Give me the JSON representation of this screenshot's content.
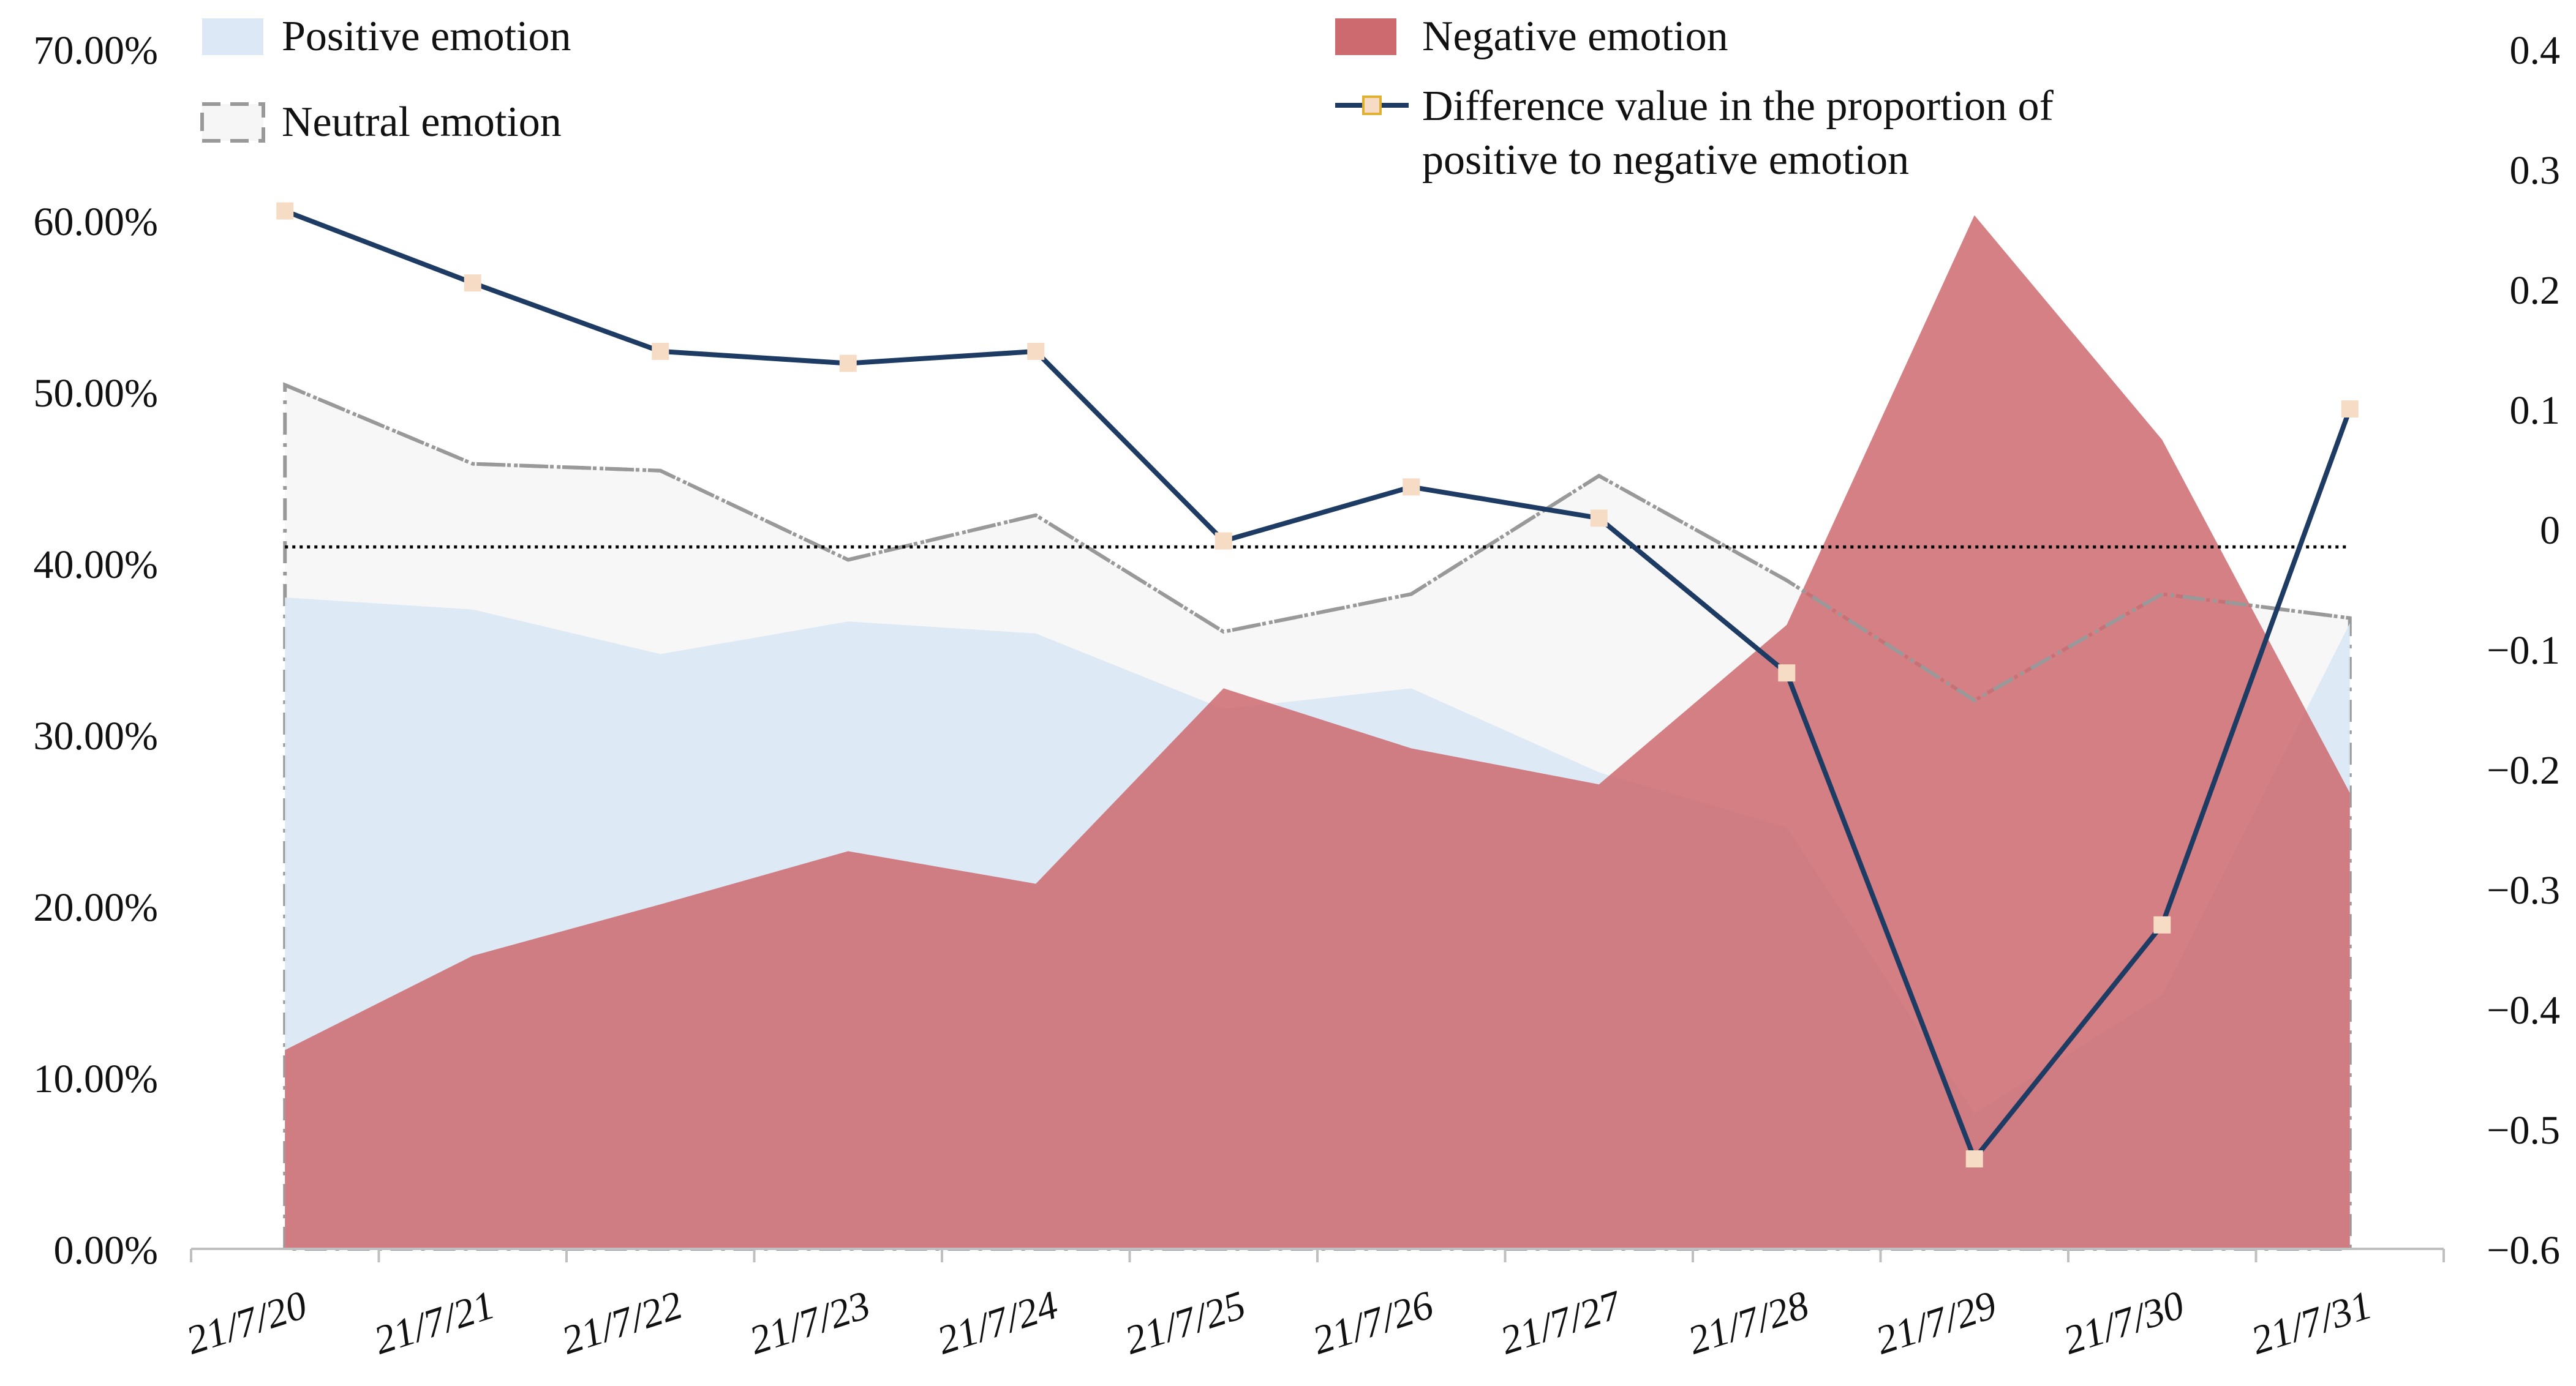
{
  "chart_data": {
    "type": "area",
    "categories": [
      "21/7/20",
      "21/7/21",
      "21/7/22",
      "21/7/23",
      "21/7/24",
      "21/7/25",
      "21/7/26",
      "21/7/27",
      "21/7/28",
      "21/7/29",
      "21/7/30",
      "21/7/31"
    ],
    "left_axis": {
      "ticks": [
        "0.00%",
        "10.00%",
        "20.00%",
        "30.00%",
        "40.00%",
        "50.00%",
        "60.00%",
        "70.00%"
      ],
      "ylim": [
        0,
        70
      ]
    },
    "right_axis": {
      "ticks": [
        "0.4",
        "0.3",
        "0.2",
        "0.1",
        "0",
        "−0.1",
        "−0.2",
        "−0.3",
        "−0.4",
        "−0.5",
        "−0.6"
      ],
      "ylim": [
        -0.6,
        0.4
      ]
    },
    "series": [
      {
        "name": "Positive emotion",
        "axis": "left",
        "kind": "area",
        "values": [
          38.0,
          37.3,
          34.7,
          36.6,
          35.9,
          31.5,
          32.7,
          27.8,
          24.6,
          7.9,
          14.8,
          36.5
        ]
      },
      {
        "name": "Negative emotion",
        "axis": "left",
        "kind": "area",
        "values": [
          11.6,
          17.1,
          20.1,
          23.2,
          21.3,
          32.7,
          29.2,
          27.1,
          36.4,
          60.3,
          47.2,
          26.6
        ]
      },
      {
        "name": "Neutral emotion",
        "axis": "left",
        "kind": "area-dashed",
        "values": [
          50.4,
          45.8,
          45.4,
          40.2,
          42.8,
          36.0,
          38.2,
          45.1,
          39.0,
          32.0,
          38.2,
          36.8
        ]
      },
      {
        "name": "Difference value in the proportion of positive to negative emotion",
        "axis": "right",
        "kind": "line",
        "values": [
          0.265,
          0.205,
          0.148,
          0.138,
          0.148,
          -0.01,
          0.035,
          0.009,
          -0.12,
          -0.525,
          -0.33,
          0.1
        ]
      }
    ],
    "reference_line": {
      "axis": "right",
      "value": -0.015,
      "style": "dotted"
    },
    "legend": {
      "positive": "Positive emotion",
      "negative": "Negative emotion",
      "neutral": "Neutral emotion",
      "difference_line1": "Difference value in the proportion of",
      "difference_line2": "positive to negative emotion"
    },
    "colors": {
      "positive": "#dce8f5",
      "negative": "#cd6a6f",
      "neutral_fill": "#f6f6f6",
      "neutral_line": "#999999",
      "difference_line": "#1d3b63",
      "marker_fill": "#f6dcc4",
      "axis": "#bfbfbf",
      "reference": "#000000"
    }
  }
}
